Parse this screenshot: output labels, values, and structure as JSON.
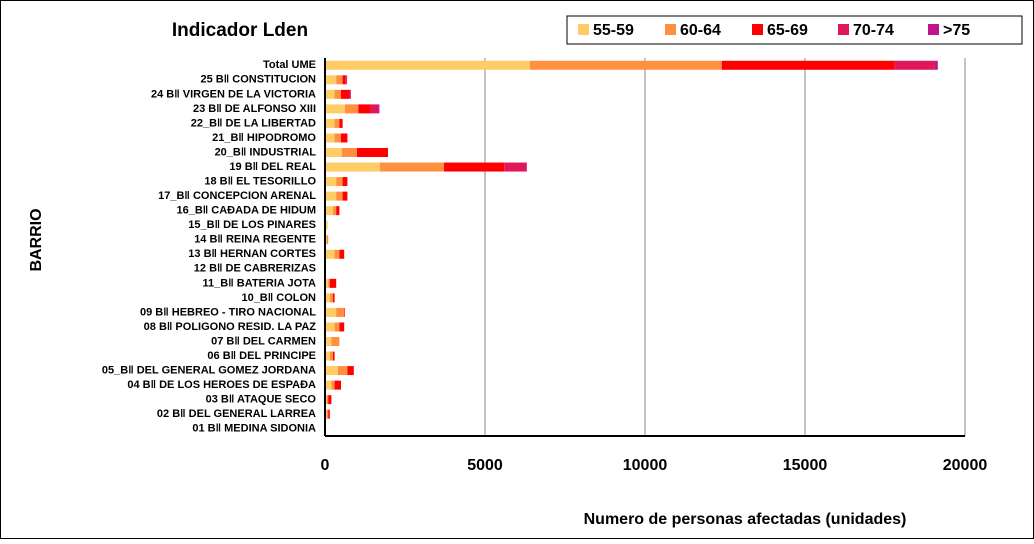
{
  "chart_data": {
    "type": "stacked-barh",
    "title": "Indicador Lden",
    "y_label": "BARRIO",
    "x_label": "Numero de personas  afectadas  (unidades)",
    "categories": [
      "Total UME",
      "25 B‖ CONSTITUCION",
      "24 B‖ VIRGEN DE LA VICTORIA",
      "23 B‖ DE ALFONSO XIII",
      "22_B‖ DE LA LIBERTAD",
      "21_B‖ HIPODROMO",
      "20_B‖ INDUSTRIAL",
      "19 B‖ DEL REAL",
      "18 B‖ EL TESORILLO",
      "17_B‖ CONCEPCION ARENAL",
      "16_B‖ CAÐADA DE HIDUM",
      "15_B‖ DE LOS PINARES",
      "14 B‖ REINA REGENTE",
      "13 B‖ HERNAN CORTES",
      "12 B‖ DE CABRERIZAS",
      "11_B‖ BATERIA JOTA",
      "10_B‖ COLON",
      "09 B‖ HEBREO - TIRO NACIONAL",
      "08 B‖ POLIGONO RESID. LA PAZ",
      "07 B‖ DEL CARMEN",
      "06 B‖ DEL PRINCIPE",
      "05_B‖ DEL GENERAL GOMEZ JORDANA",
      "04 B‖ DE LOS HEROES DE ESPAÐA",
      "03 B‖ ATAQUE SECO",
      "02 B‖ DEL GENERAL LARREA",
      "01 B‖ MEDINA SIDONIA"
    ],
    "series": [
      {
        "name": "55-59",
        "color": "#ffcc66",
        "values": [
          6400,
          350,
          300,
          620,
          300,
          300,
          530,
          1720,
          350,
          350,
          250,
          80,
          50,
          300,
          30,
          100,
          150,
          350,
          300,
          200,
          150,
          400,
          200,
          50,
          50,
          30
        ]
      },
      {
        "name": "60-64",
        "color": "#ff9040",
        "values": [
          6000,
          200,
          200,
          420,
          150,
          200,
          470,
          2000,
          200,
          200,
          100,
          0,
          50,
          150,
          0,
          50,
          100,
          250,
          150,
          250,
          100,
          300,
          100,
          50,
          50,
          0
        ]
      },
      {
        "name": "65-69",
        "color": "#ff0000",
        "values": [
          5400,
          100,
          250,
          380,
          100,
          200,
          970,
          1880,
          150,
          150,
          100,
          0,
          0,
          150,
          0,
          200,
          50,
          20,
          150,
          0,
          50,
          200,
          200,
          100,
          50,
          0
        ]
      },
      {
        "name": "70-74",
        "color": "#e0185a",
        "values": [
          1260,
          30,
          50,
          250,
          0,
          0,
          0,
          690,
          0,
          0,
          0,
          0,
          0,
          0,
          0,
          0,
          0,
          0,
          0,
          0,
          0,
          0,
          0,
          0,
          0,
          0
        ]
      },
      {
        "name": ">75",
        "color": "#c0148c",
        "values": [
          90,
          10,
          10,
          30,
          0,
          0,
          0,
          20,
          0,
          0,
          0,
          0,
          0,
          0,
          0,
          0,
          0,
          0,
          0,
          0,
          0,
          0,
          0,
          0,
          0,
          0
        ]
      }
    ],
    "xlim": [
      0,
      20000
    ],
    "xticks": [
      0,
      5000,
      10000,
      15000,
      20000
    ],
    "grid": true,
    "legend": "top-right"
  }
}
